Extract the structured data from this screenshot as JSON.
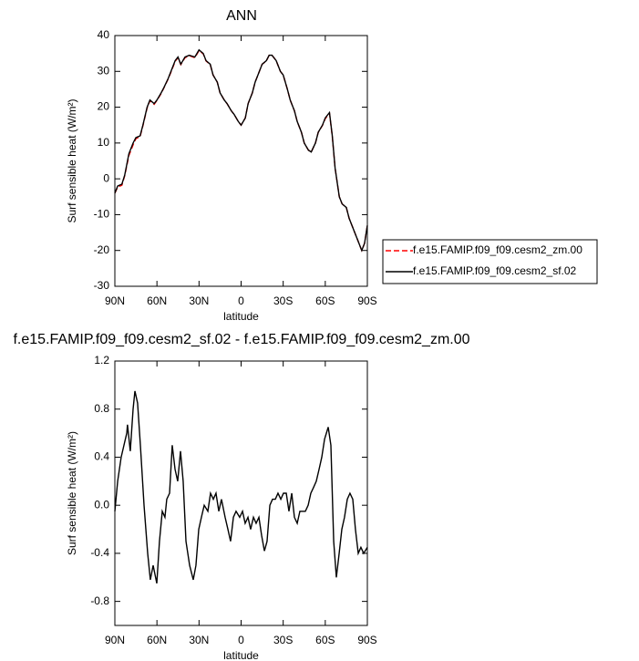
{
  "chart_data": [
    {
      "type": "line",
      "title": "ANN",
      "xlabel": "latitude",
      "ylabel": "Surf sensible heat (W/m²)",
      "x": [
        90,
        88,
        85,
        83,
        80,
        77,
        75,
        72,
        70,
        67,
        65,
        62,
        60,
        57,
        55,
        52,
        50,
        47,
        45,
        43,
        40,
        37,
        33,
        30,
        27,
        25,
        22,
        20,
        17,
        15,
        12,
        10,
        7,
        5,
        2,
        0,
        -3,
        -5,
        -8,
        -10,
        -12,
        -15,
        -18,
        -20,
        -22,
        -25,
        -28,
        -30,
        -33,
        -35,
        -38,
        -40,
        -43,
        -45,
        -48,
        -50,
        -53,
        -55,
        -58,
        -60,
        -63,
        -65,
        -67,
        -70,
        -72,
        -75,
        -77,
        -80,
        -83,
        -86,
        -88,
        -90
      ],
      "series": [
        {
          "name": "f.e15.FAMIP.f09_f09.cesm2_zm.00",
          "color": "#ff0000",
          "dash": true,
          "values": [
            -4,
            -2.3,
            -1.8,
            0.8,
            6.5,
            9.5,
            11.2,
            11.8,
            14.8,
            19.8,
            21.8,
            20.8,
            21.9,
            23.8,
            25.4,
            27.9,
            29.8,
            32.8,
            33.8,
            31.9,
            33.8,
            34.4,
            33.8,
            35.8,
            34.9,
            32.9,
            31.9,
            29,
            27,
            24,
            22,
            21,
            19,
            18,
            16,
            15,
            17,
            21,
            24,
            27,
            29,
            32,
            32.9,
            34.5,
            34.5,
            33,
            30,
            29,
            25,
            22,
            19,
            16,
            13,
            10,
            8,
            7.5,
            10,
            13,
            14.9,
            16.8,
            18.3,
            11.8,
            3,
            -5,
            -7,
            -8,
            -11,
            -14,
            -17,
            -20,
            -18,
            -13
          ]
        },
        {
          "name": "f.e15.FAMIP.f09_f09.cesm2_sf.02",
          "color": "#000000",
          "dash": false,
          "values": [
            -4,
            -2,
            -1.5,
            1,
            7,
            10,
            11.5,
            12,
            15,
            20,
            22,
            21,
            22,
            24,
            25.5,
            28,
            30,
            33,
            34,
            32,
            34,
            34.5,
            34,
            36,
            35,
            33,
            32,
            29,
            27,
            24,
            22,
            21,
            19,
            18,
            16,
            15,
            17,
            21,
            24,
            27,
            29,
            32,
            33,
            34.5,
            34.5,
            33,
            30,
            29,
            25,
            22,
            19,
            16,
            13,
            10,
            8,
            7.5,
            10,
            13,
            15,
            17,
            18.5,
            12,
            3,
            -5,
            -7,
            -8,
            -11,
            -14,
            -17,
            -20,
            -18,
            -13
          ]
        }
      ],
      "xlim": [
        90,
        -90
      ],
      "ylim": [
        -30,
        40
      ],
      "xticks": [
        {
          "value": 90,
          "label": "90N"
        },
        {
          "value": 60,
          "label": "60N"
        },
        {
          "value": 30,
          "label": "30N"
        },
        0,
        {
          "value": -30,
          "label": "30S"
        },
        {
          "value": -60,
          "label": "60S"
        },
        {
          "value": -90,
          "label": "90S"
        }
      ],
      "yticks": [
        -30,
        -20,
        -10,
        0,
        10,
        20,
        30,
        40
      ],
      "legend": "right"
    },
    {
      "type": "line",
      "title": "f.e15.FAMIP.f09_f09.cesm2_sf.02 - f.e15.FAMIP.f09_f09.cesm2_zm.00",
      "xlabel": "latitude",
      "ylabel": "Surf sensible heat (W/m²)",
      "x": [
        90,
        88,
        85.5,
        83.5,
        81.5,
        81,
        79,
        77,
        75.7,
        73.8,
        71.8,
        69.2,
        66.6,
        64.7,
        62.7,
        60.1,
        58.2,
        56.2,
        54.3,
        53,
        51,
        49.1,
        47.1,
        45.2,
        43.2,
        41.3,
        39.3,
        36.7,
        34.1,
        32.2,
        30.2,
        28.3,
        26.3,
        23.7,
        21.8,
        19.8,
        17.9,
        15.9,
        14,
        11.4,
        9.4,
        7.5,
        5.5,
        3.6,
        1,
        -1,
        -2.9,
        -4.9,
        -6.8,
        -8.8,
        -10.7,
        -12.7,
        -14.6,
        -16.6,
        -18.5,
        -20.5,
        -22.4,
        -24.4,
        -26.3,
        -28.3,
        -30.2,
        -32.2,
        -34.1,
        -36.1,
        -38,
        -40,
        -41.9,
        -43.9,
        -45.8,
        -47.8,
        -49.7,
        -51.7,
        -53.6,
        -55.6,
        -57.5,
        -59.5,
        -62.1,
        -64,
        -66,
        -67.9,
        -69.9,
        -71.8,
        -73.7,
        -75.7,
        -77.6,
        -79.6,
        -81.5,
        -83.5,
        -85.4,
        -87.4,
        -90
      ],
      "series": [
        {
          "name": "f.e15.FAMIP.f09_f09.cesm2_sf.02 - f.e15.FAMIP.f09_f09.cesm2_zm.00",
          "color": "#000000",
          "dash": false,
          "values": [
            -0.05,
            0.2,
            0.4,
            0.5,
            0.6,
            0.67,
            0.45,
            0.8,
            0.95,
            0.85,
            0.5,
            0.0,
            -0.4,
            -0.62,
            -0.5,
            -0.65,
            -0.3,
            -0.05,
            -0.1,
            0.05,
            0.1,
            0.5,
            0.3,
            0.2,
            0.45,
            0.2,
            -0.3,
            -0.5,
            -0.62,
            -0.5,
            -0.2,
            -0.1,
            0.0,
            -0.05,
            0.1,
            0.05,
            0.1,
            -0.05,
            0.05,
            -0.1,
            -0.2,
            -0.3,
            -0.1,
            -0.05,
            -0.1,
            -0.05,
            -0.15,
            -0.1,
            -0.2,
            -0.1,
            -0.15,
            -0.1,
            -0.25,
            -0.38,
            -0.3,
            0.0,
            0.05,
            0.05,
            0.1,
            0.05,
            0.1,
            0.1,
            -0.05,
            0.1,
            -0.1,
            -0.15,
            -0.05,
            -0.05,
            -0.05,
            0.0,
            0.1,
            0.15,
            0.2,
            0.3,
            0.4,
            0.55,
            0.65,
            0.5,
            -0.3,
            -0.6,
            -0.4,
            -0.2,
            -0.1,
            0.05,
            0.1,
            0.05,
            -0.2,
            -0.4,
            -0.35,
            -0.4,
            -0.35
          ]
        }
      ],
      "xlim": [
        90,
        -90
      ],
      "ylim": [
        -1.0,
        1.2
      ],
      "xticks": [
        {
          "value": 90,
          "label": "90N"
        },
        {
          "value": 60,
          "label": "60N"
        },
        {
          "value": 30,
          "label": "30N"
        },
        0,
        {
          "value": -30,
          "label": "30S"
        },
        {
          "value": -60,
          "label": "60S"
        },
        {
          "value": -90,
          "label": "90S"
        }
      ],
      "yticks": [
        -0.8,
        -0.4,
        {
          "value": 0,
          "label": "0.0"
        },
        0.4,
        0.8,
        1.2
      ]
    }
  ]
}
